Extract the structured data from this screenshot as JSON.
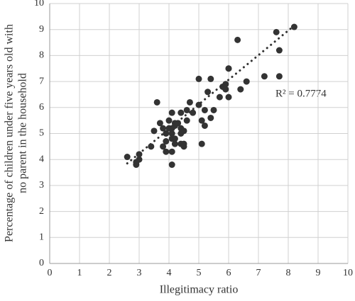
{
  "chart_data": {
    "type": "scatter",
    "x_label": "Illegitimacy ratio",
    "y_label": [
      "Percentage of children under five years old with",
      "no parent in the household"
    ],
    "annotation": "R² = 0.7774",
    "xlim": [
      0,
      10
    ],
    "ylim": [
      0,
      10
    ],
    "xticks": [
      0,
      1,
      2,
      3,
      4,
      5,
      6,
      7,
      8,
      9,
      10
    ],
    "yticks": [
      0,
      1,
      2,
      3,
      4,
      5,
      6,
      7,
      8,
      9,
      10
    ],
    "grid": true,
    "color": "#333333",
    "trend_color": "#333333",
    "x": [
      2.6,
      2.9,
      3.0,
      3.0,
      2.9,
      3.4,
      3.5,
      3.6,
      3.7,
      3.8,
      3.8,
      3.9,
      3.9,
      3.9,
      4.0,
      4.0,
      4.1,
      4.1,
      4.1,
      4.1,
      4.1,
      4.1,
      4.2,
      4.2,
      4.2,
      4.2,
      4.3,
      4.4,
      4.4,
      4.4,
      4.4,
      4.5,
      4.5,
      4.5,
      4.6,
      4.6,
      4.7,
      4.8,
      5.0,
      5.0,
      5.1,
      5.1,
      5.2,
      5.2,
      5.3,
      5.4,
      5.4,
      5.5,
      5.7,
      5.8,
      5.9,
      5.9,
      6.0,
      6.0,
      6.0,
      6.3,
      6.4,
      6.6,
      7.2,
      7.6,
      7.7,
      7.7,
      8.2
    ],
    "y": [
      4.1,
      3.8,
      4.0,
      4.2,
      3.9,
      4.5,
      5.1,
      6.2,
      5.4,
      4.5,
      5.2,
      5.0,
      4.7,
      4.3,
      5.2,
      5.5,
      4.8,
      4.3,
      5.8,
      5.2,
      5.0,
      3.8,
      5.4,
      4.8,
      4.6,
      5.3,
      5.4,
      5.0,
      4.6,
      5.8,
      5.2,
      4.6,
      5.1,
      4.5,
      5.5,
      5.9,
      6.2,
      5.8,
      6.1,
      7.1,
      5.5,
      4.6,
      5.9,
      5.3,
      6.6,
      7.1,
      5.6,
      5.9,
      6.4,
      6.8,
      6.9,
      6.7,
      7.5,
      7.5,
      6.4,
      8.6,
      6.7,
      7.0,
      7.2,
      8.9,
      7.2,
      8.2,
      9.1
    ],
    "trend": {
      "x": [
        2.6,
        8.2
      ],
      "y": [
        3.85,
        9.15
      ]
    }
  }
}
